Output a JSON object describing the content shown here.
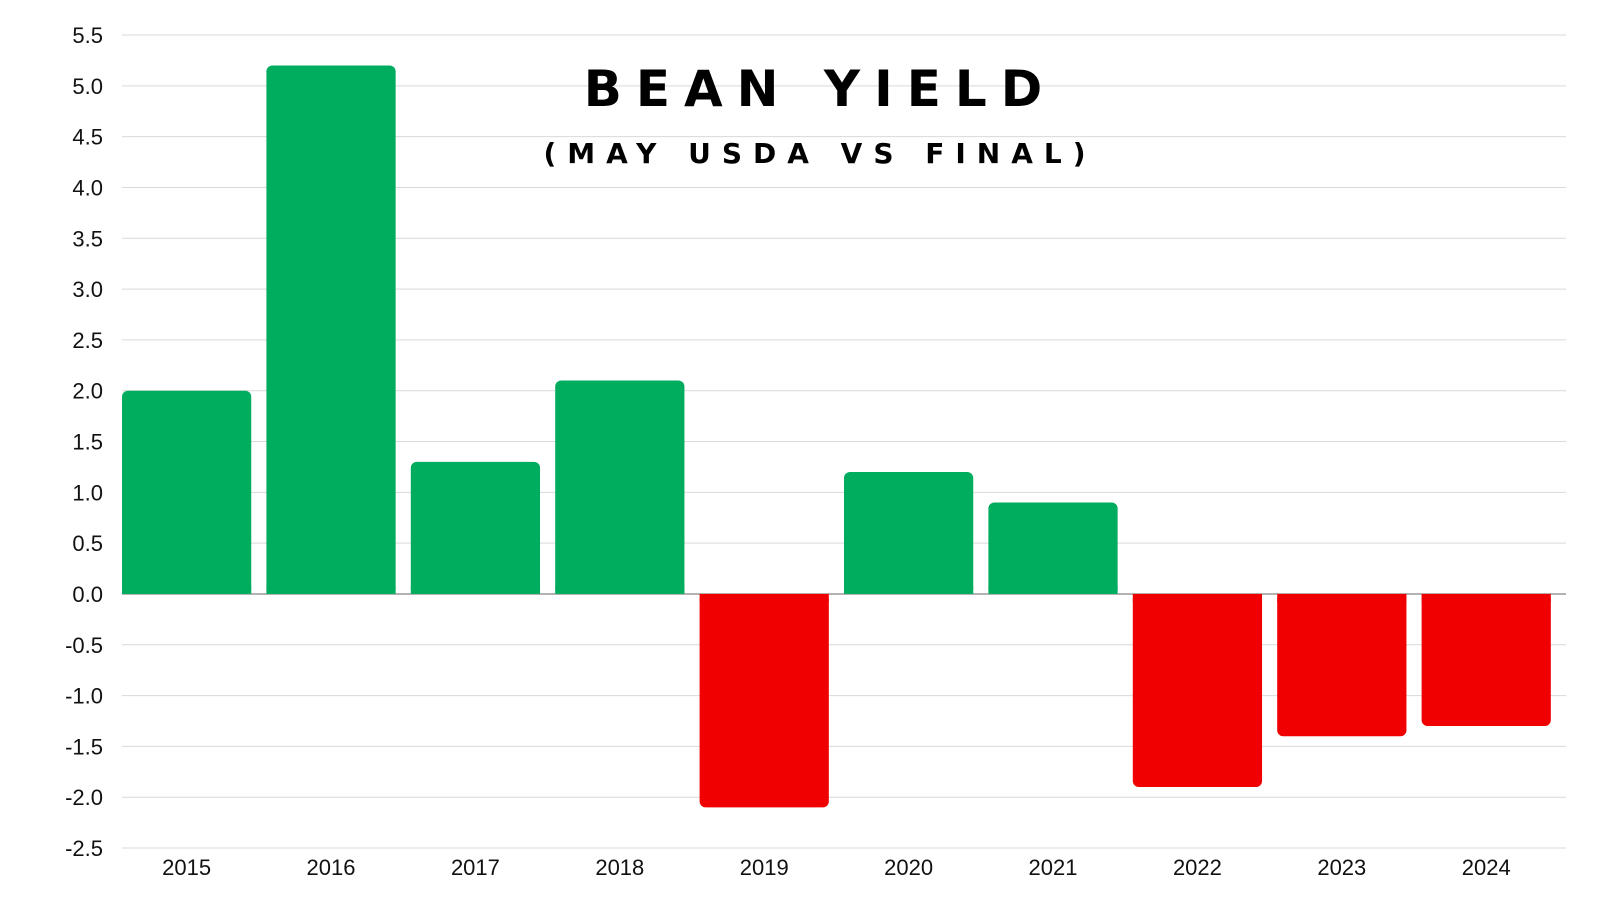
{
  "chart_data": {
    "type": "bar",
    "title": "BEAN YIELD",
    "subtitle": "(MAY USDA VS FINAL)",
    "xlabel": "",
    "ylabel": "",
    "categories": [
      "2015",
      "2016",
      "2017",
      "2018",
      "2019",
      "2020",
      "2021",
      "2022",
      "2023",
      "2024"
    ],
    "values": [
      2.0,
      5.2,
      1.3,
      2.1,
      -2.1,
      1.2,
      0.9,
      -1.9,
      -1.4,
      -1.3
    ],
    "ylim": [
      -2.5,
      5.5
    ],
    "yticks": [
      "5.5",
      "5.0",
      "4.5",
      "4.0",
      "3.5",
      "3.0",
      "2.5",
      "2.0",
      "1.5",
      "1.0",
      "0.5",
      "0.0",
      "-0.5",
      "-1.0",
      "-1.5",
      "-2.0",
      "-2.5"
    ],
    "grid": true,
    "legend": "none",
    "colors": {
      "positive": "#00ac5e",
      "negative": "#f00000",
      "grid": "#d9d9d9",
      "baseline": "#9a9a9a"
    }
  }
}
